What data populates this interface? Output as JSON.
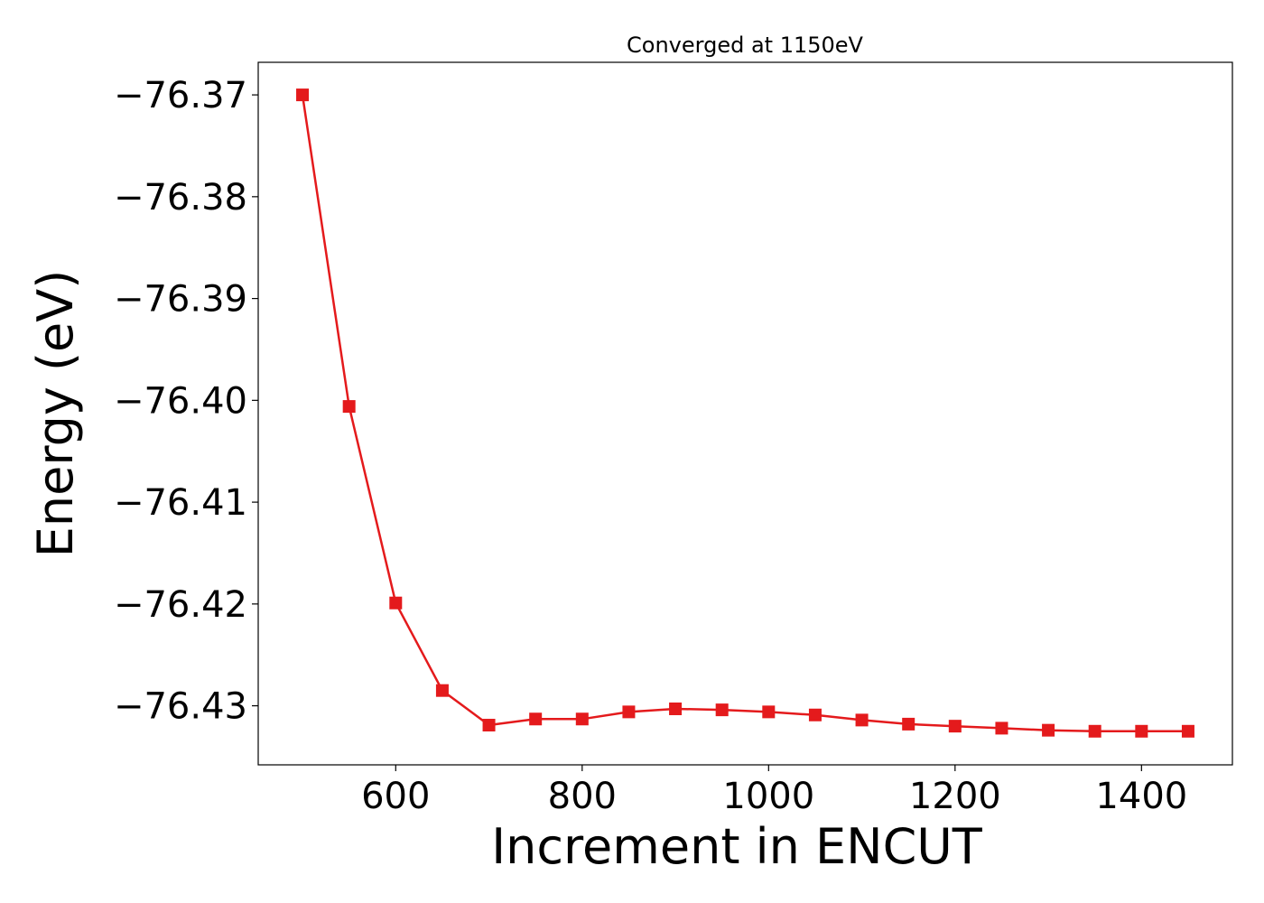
{
  "chart_data": {
    "type": "line",
    "title": "Converged at 1150eV",
    "xlabel": "Increment in ENCUT",
    "ylabel": "Energy (eV)",
    "xlim": [
      452.5,
      1497.5
    ],
    "ylim": [
      -76.4358,
      -76.3668
    ],
    "xticks": [
      600,
      800,
      1000,
      1200,
      1400
    ],
    "xtick_labels": [
      "600",
      "800",
      "1000",
      "1200",
      "1400"
    ],
    "yticks": [
      -76.37,
      -76.38,
      -76.39,
      -76.4,
      -76.41,
      -76.42,
      -76.43
    ],
    "ytick_labels": [
      "−76.37",
      "−76.38",
      "−76.39",
      "−76.40",
      "−76.41",
      "−76.42",
      "−76.43"
    ],
    "grid": false,
    "legend": "none",
    "marker": "square",
    "color": "#e41a1c",
    "x": [
      500,
      550,
      600,
      650,
      700,
      750,
      800,
      850,
      900,
      950,
      1000,
      1050,
      1100,
      1150,
      1200,
      1250,
      1300,
      1350,
      1400,
      1450
    ],
    "y": [
      -76.37,
      -76.4006,
      -76.4199,
      -76.4285,
      -76.4319,
      -76.4313,
      -76.4313,
      -76.4306,
      -76.4303,
      -76.4304,
      -76.4306,
      -76.4309,
      -76.4314,
      -76.4318,
      -76.432,
      -76.4322,
      -76.4324,
      -76.4325,
      -76.4325,
      -76.4325
    ]
  }
}
